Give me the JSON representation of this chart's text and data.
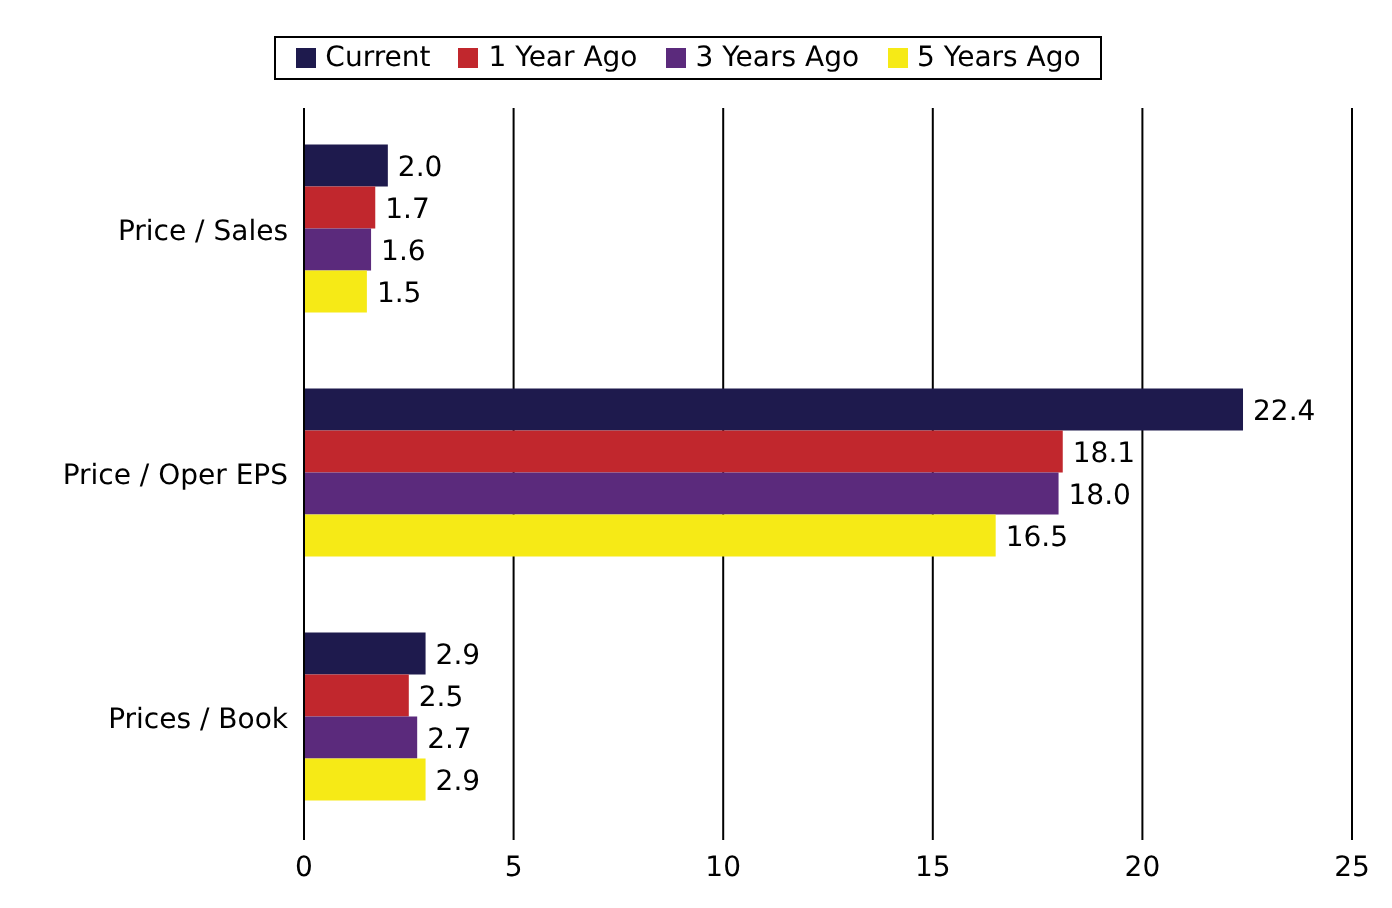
{
  "chart_data": {
    "type": "bar",
    "orientation": "horizontal",
    "categories": [
      "Price / Sales",
      "Price / Oper EPS",
      "Prices / Book"
    ],
    "series": [
      {
        "name": "Current",
        "color": "#1e1a4d",
        "values": [
          2.0,
          22.4,
          2.9
        ],
        "value_labels": [
          "2.0",
          "22.4",
          "2.9"
        ]
      },
      {
        "name": "1 Year Ago",
        "color": "#c1272d",
        "values": [
          1.7,
          18.1,
          2.5
        ],
        "value_labels": [
          "1.7",
          "18.1",
          "2.5"
        ]
      },
      {
        "name": "3 Years Ago",
        "color": "#5b2a7c",
        "values": [
          1.6,
          18.0,
          2.7
        ],
        "value_labels": [
          "1.6",
          "18.0",
          "2.7"
        ]
      },
      {
        "name": "5 Years Ago",
        "color": "#f6ea16",
        "values": [
          1.5,
          16.5,
          2.9
        ],
        "value_labels": [
          "1.5",
          "16.5",
          "2.9"
        ]
      }
    ],
    "xlim": [
      0,
      25
    ],
    "xticks": [
      0,
      5,
      10,
      15,
      20,
      25
    ],
    "grid": "x",
    "legend": "top"
  }
}
